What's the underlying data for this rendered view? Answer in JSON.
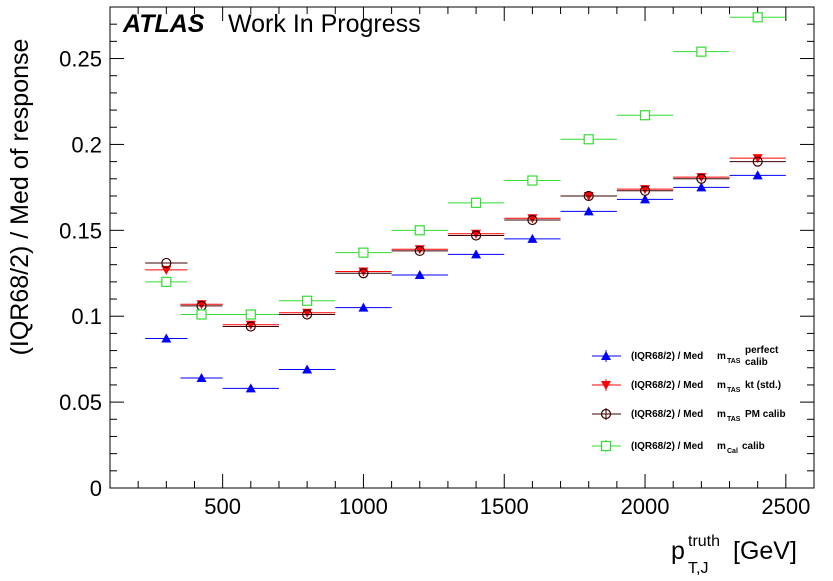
{
  "header": {
    "atlas": "ATLAS",
    "status": "Work In Progress"
  },
  "chart_data": {
    "type": "scatter",
    "title": "",
    "xlabel": {
      "main": "p",
      "sup": "truth",
      "sub": "T,J",
      "unit": "[GeV]"
    },
    "ylabel": "(IQR68/2) / Med of response",
    "xlim": [
      100,
      2600
    ],
    "ylim": [
      0,
      0.28
    ],
    "xticks": [
      500,
      1000,
      1500,
      2000,
      2500
    ],
    "yticks": [
      0,
      0.05,
      0.1,
      0.15,
      0.2,
      0.25
    ],
    "ytick_labels": [
      "0",
      "0.05",
      "0.1",
      "0.15",
      "0.2",
      "0.25"
    ],
    "legend_position": "bottom-right",
    "grid": false,
    "series": [
      {
        "id": "perfect",
        "label": {
          "prefix": "(IQR68/2) / Med",
          "m": "m",
          "sub": "TAS",
          "suffix": "",
          "sup": "perfect",
          "sub2": "calib"
        },
        "marker": "triangle-up",
        "filled": true,
        "color": "#0000ff",
        "x": [
          300,
          425,
          600,
          800,
          1000,
          1200,
          1400,
          1600,
          1800,
          2000,
          2200,
          2400
        ],
        "xerr_low": [
          75,
          75,
          100,
          100,
          100,
          100,
          100,
          100,
          100,
          100,
          100,
          100
        ],
        "xerr_high": [
          75,
          75,
          100,
          100,
          100,
          100,
          100,
          100,
          100,
          100,
          100,
          100
        ],
        "y": [
          0.087,
          0.064,
          0.058,
          0.069,
          0.105,
          0.124,
          0.136,
          0.145,
          0.161,
          0.168,
          0.175,
          0.182
        ]
      },
      {
        "id": "kt",
        "label": {
          "prefix": "(IQR68/2) / Med",
          "m": "m",
          "sub": "TAS",
          "suffix": "kt (std.)",
          "sup": "",
          "sub2": ""
        },
        "marker": "triangle-down",
        "filled": true,
        "color": "#ff0000",
        "x": [
          300,
          425,
          600,
          800,
          1000,
          1200,
          1400,
          1600,
          1800,
          2000,
          2200,
          2400
        ],
        "xerr_low": [
          75,
          75,
          100,
          100,
          100,
          100,
          100,
          100,
          100,
          100,
          100,
          100
        ],
        "xerr_high": [
          75,
          75,
          100,
          100,
          100,
          100,
          100,
          100,
          100,
          100,
          100,
          100
        ],
        "y": [
          0.127,
          0.107,
          0.095,
          0.102,
          0.126,
          0.139,
          0.148,
          0.157,
          0.17,
          0.174,
          0.181,
          0.192
        ]
      },
      {
        "id": "pm",
        "label": {
          "prefix": "(IQR68/2) / Med",
          "m": "m",
          "sub": "TAS",
          "suffix": "PM calib",
          "sup": "",
          "sub2": ""
        },
        "marker": "circle-open",
        "filled": false,
        "color": "#3b0000",
        "x": [
          300,
          425,
          600,
          800,
          1000,
          1200,
          1400,
          1600,
          1800,
          2000,
          2200,
          2400
        ],
        "xerr_low": [
          75,
          75,
          100,
          100,
          100,
          100,
          100,
          100,
          100,
          100,
          100,
          100
        ],
        "xerr_high": [
          75,
          75,
          100,
          100,
          100,
          100,
          100,
          100,
          100,
          100,
          100,
          100
        ],
        "y": [
          0.131,
          0.106,
          0.094,
          0.101,
          0.125,
          0.138,
          0.147,
          0.156,
          0.17,
          0.173,
          0.18,
          0.19
        ]
      },
      {
        "id": "cal",
        "label": {
          "prefix": "(IQR68/2) / Med",
          "m": "m",
          "sub": "Cal",
          "suffix": "calib",
          "sup": "",
          "sub2": ""
        },
        "marker": "square-open",
        "filled": false,
        "color": "#33dd33",
        "x": [
          300,
          425,
          600,
          800,
          1000,
          1200,
          1400,
          1600,
          1800,
          2000,
          2200,
          2400
        ],
        "xerr_low": [
          75,
          75,
          100,
          100,
          100,
          100,
          100,
          100,
          100,
          100,
          100,
          100
        ],
        "xerr_high": [
          75,
          75,
          100,
          100,
          100,
          100,
          100,
          100,
          100,
          100,
          100,
          100
        ],
        "y": [
          0.12,
          0.101,
          0.101,
          0.109,
          0.137,
          0.15,
          0.166,
          0.179,
          0.203,
          0.217,
          0.254,
          0.274
        ]
      }
    ]
  }
}
